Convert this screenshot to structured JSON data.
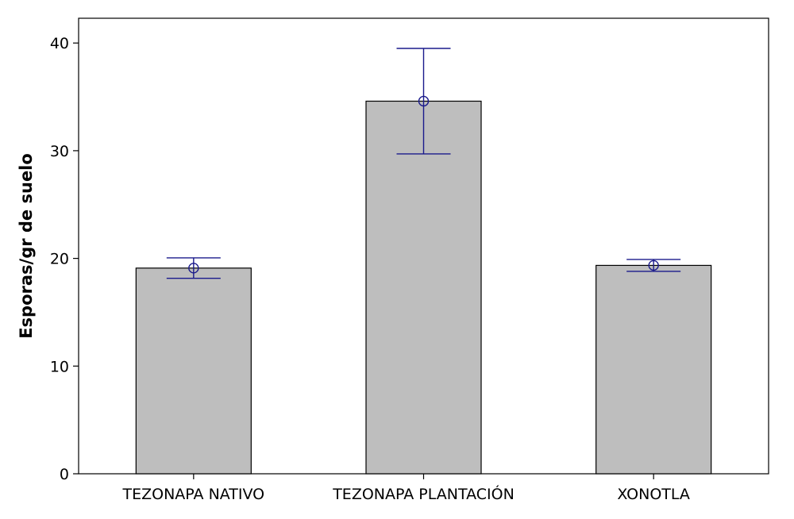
{
  "chart_data": {
    "type": "bar",
    "title": "",
    "xlabel": "",
    "ylabel": "Esporas/gr de suelo",
    "categories": [
      "TEZONAPA NATIVO",
      "TEZONAPA PLANTACIÓN",
      "XONOTLA"
    ],
    "values": [
      19.1,
      34.6,
      19.35
    ],
    "error_low": [
      18.15,
      29.7,
      18.8
    ],
    "error_high": [
      20.05,
      39.5,
      19.9
    ],
    "ylim": [
      0,
      42.3
    ],
    "yticks": [
      0,
      10,
      20,
      30,
      40
    ],
    "grid": false,
    "colors": {
      "bar_fill": "#bebebe",
      "bar_stroke": "#000000",
      "error_bar": "#1a1a8c",
      "axis": "#000000"
    }
  }
}
